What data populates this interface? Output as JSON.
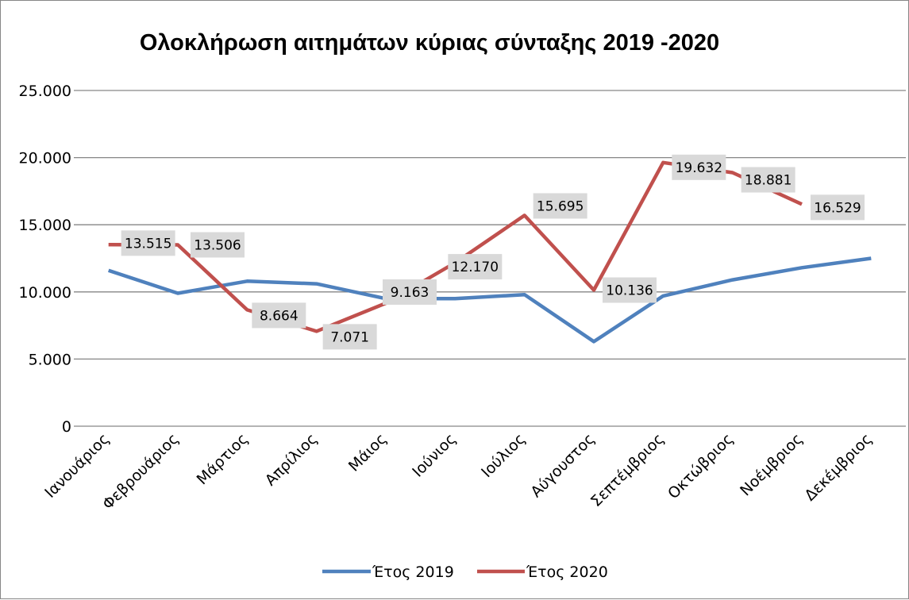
{
  "chart_data": {
    "type": "line",
    "title": "Ολοκλήρωση αιτημάτων κύριας σύνταξης 2019 -2020",
    "xlabel": "",
    "ylabel": "",
    "ylim": [
      0,
      25000
    ],
    "yticks": [
      "0",
      "5.000",
      "10.000",
      "15.000",
      "20.000",
      "25.000"
    ],
    "grid": true,
    "legend_position": "bottom",
    "categories": [
      "Ιανουάριος",
      "Φεβρουάριος",
      "Μάρτιος",
      "Απρίλιος",
      "Μάιος",
      "Ιούνιος",
      "Ιούλιος",
      "Αύγουστος",
      "Σεπτέμβριος",
      "Οκτώβριος",
      "Νοέμβριος",
      "Δεκέμβριος"
    ],
    "series": [
      {
        "name": "Έτος 2019",
        "color": "#4f81bd",
        "values": [
          11600,
          9900,
          10800,
          10600,
          9500,
          9500,
          9800,
          6300,
          9700,
          10900,
          11800,
          12500
        ],
        "labels": []
      },
      {
        "name": "Έτος 2020",
        "color": "#c0504d",
        "values": [
          13515,
          13506,
          8664,
          7071,
          9163,
          12170,
          15695,
          10136,
          19632,
          18881,
          16529,
          null
        ],
        "labels": [
          "13.515",
          "13.506",
          "8.664",
          "7.071",
          "9.163",
          "12.170",
          "15.695",
          "10.136",
          "19.632",
          "18.881",
          "16.529",
          ""
        ]
      }
    ]
  }
}
